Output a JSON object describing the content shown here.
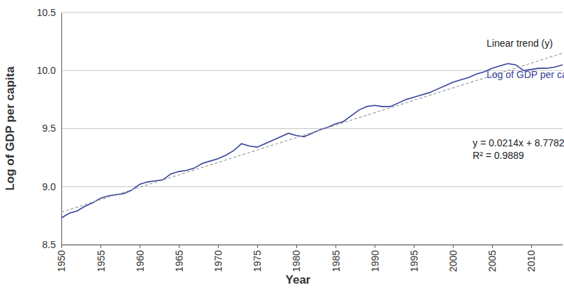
{
  "chart_data": {
    "type": "line",
    "x_label": "Year",
    "y_label": "Log of GDP per capita",
    "x": [
      1950,
      1951,
      1952,
      1953,
      1954,
      1955,
      1956,
      1957,
      1958,
      1959,
      1960,
      1961,
      1962,
      1963,
      1964,
      1965,
      1966,
      1967,
      1968,
      1969,
      1970,
      1971,
      1972,
      1973,
      1974,
      1975,
      1976,
      1977,
      1978,
      1979,
      1980,
      1981,
      1982,
      1983,
      1984,
      1985,
      1986,
      1987,
      1988,
      1989,
      1990,
      1991,
      1992,
      1993,
      1994,
      1995,
      1996,
      1997,
      1998,
      1999,
      2000,
      2001,
      2002,
      2003,
      2004,
      2005,
      2006,
      2007,
      2008,
      2009,
      2010,
      2011,
      2012,
      2013,
      2014
    ],
    "series": [
      {
        "name": "Log of GDP per capita",
        "color": "#35429b",
        "line_style": "solid",
        "values": [
          8.73,
          8.77,
          8.79,
          8.83,
          8.86,
          8.9,
          8.92,
          8.93,
          8.94,
          8.97,
          9.02,
          9.04,
          9.05,
          9.06,
          9.11,
          9.13,
          9.14,
          9.16,
          9.2,
          9.22,
          9.24,
          9.27,
          9.31,
          9.37,
          9.35,
          9.34,
          9.37,
          9.4,
          9.43,
          9.46,
          9.44,
          9.43,
          9.46,
          9.49,
          9.51,
          9.54,
          9.56,
          9.61,
          9.66,
          9.69,
          9.7,
          9.69,
          9.69,
          9.72,
          9.75,
          9.77,
          9.79,
          9.81,
          9.84,
          9.87,
          9.9,
          9.92,
          9.94,
          9.97,
          9.99,
          10.02,
          10.04,
          10.06,
          10.05,
          10.0,
          10.01,
          10.02,
          10.02,
          10.03,
          10.05
        ]
      },
      {
        "name": "Linear trend (y)",
        "color": "#9a9a9a",
        "line_style": "dashed",
        "x": [
          1950,
          2014
        ],
        "values": [
          8.78,
          10.15
        ]
      }
    ],
    "annotations": [
      "y = 0.0214x + 8.7782",
      "R² = 0.9889"
    ],
    "xlim": [
      1950,
      2014
    ],
    "xticks": [
      1950,
      1955,
      1960,
      1965,
      1970,
      1975,
      1980,
      1985,
      1990,
      1995,
      2000,
      2005,
      2010
    ],
    "ylim": [
      8.5,
      10.5
    ],
    "yticks": [
      8.5,
      {
        "value": 9,
        "label": "9.0"
      },
      9.5,
      {
        "value": 10,
        "label": "10.0"
      },
      10.5
    ],
    "grid": true
  }
}
